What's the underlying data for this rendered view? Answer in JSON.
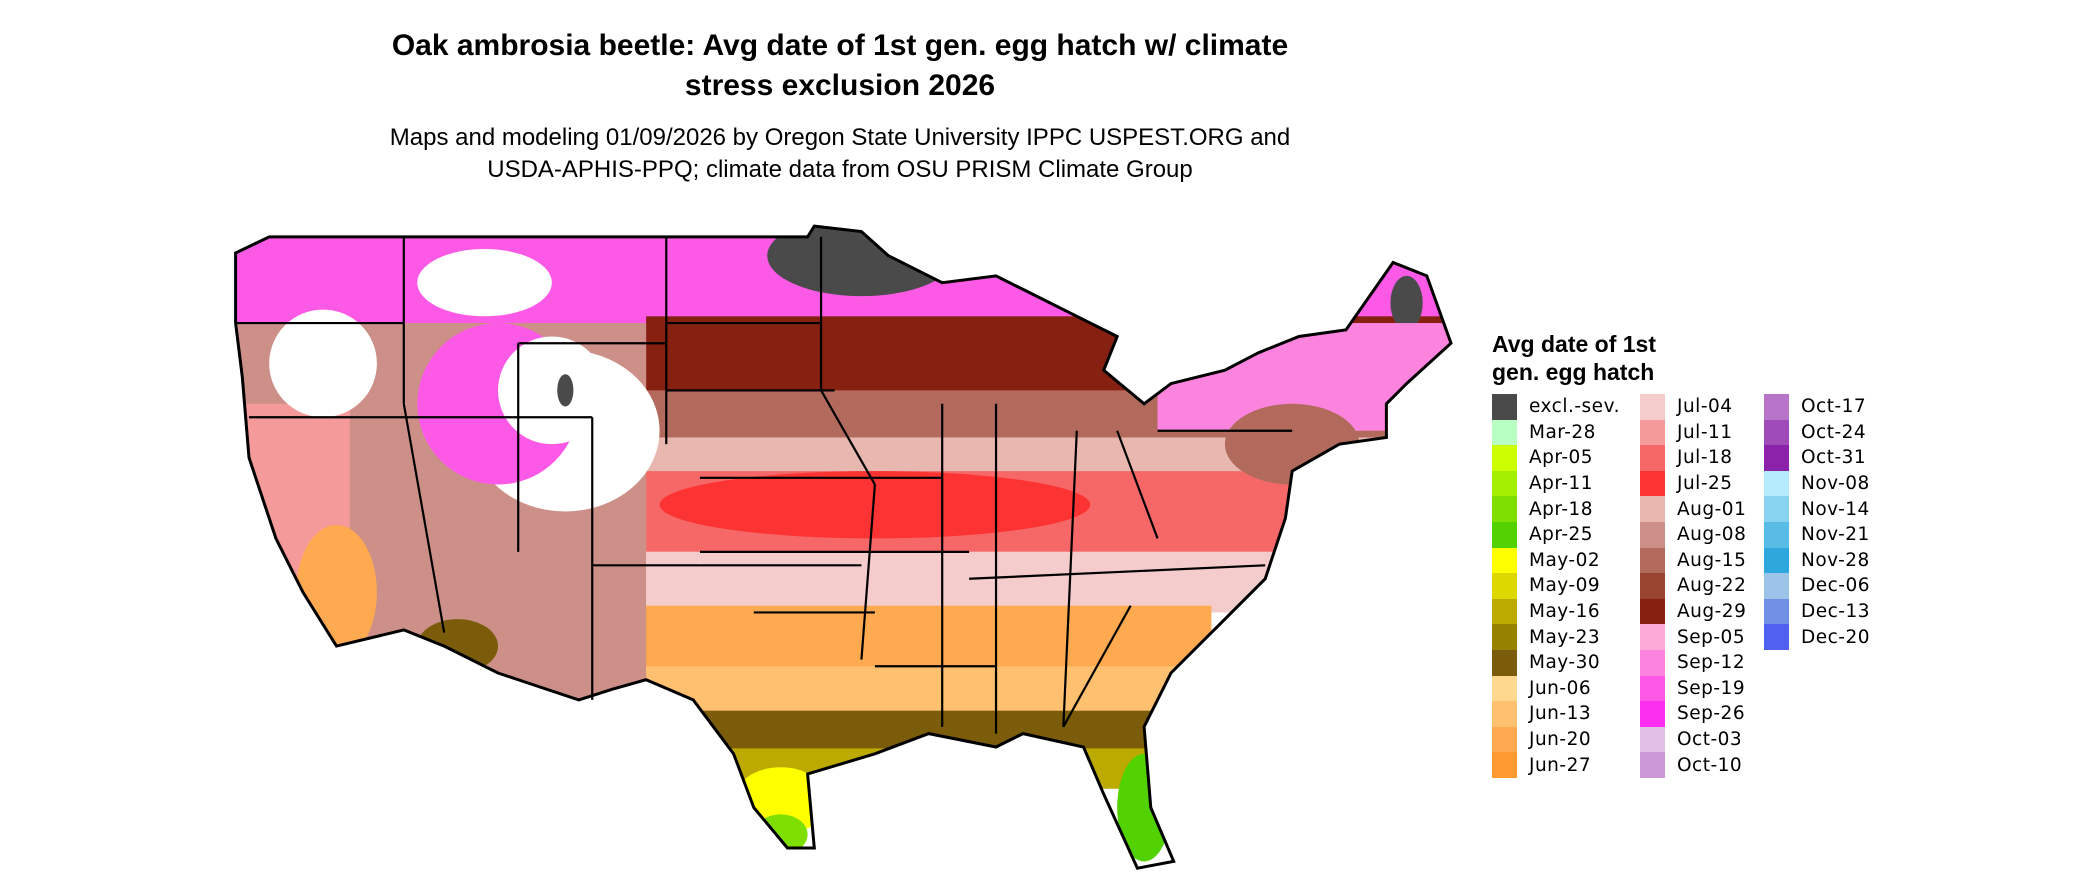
{
  "title": {
    "line1": "Oak ambrosia beetle: Avg date of 1st gen. egg hatch w/ climate",
    "line2": "stress exclusion 2026"
  },
  "subtitle": {
    "line1": "Maps and modeling 01/09/2026 by Oregon State University IPPC USPEST.ORG and",
    "line2": "USDA-APHIS-PPQ; climate data from OSU PRISM Climate Group"
  },
  "legend": {
    "title_line1": "Avg date of 1st",
    "title_line2": "gen. egg hatch",
    "columns": [
      [
        {
          "label": "excl.-sev.",
          "color": "#4a4a4a"
        },
        {
          "label": "Mar-28",
          "color": "#b8ffc4"
        },
        {
          "label": "Apr-05",
          "color": "#ccff00"
        },
        {
          "label": "Apr-11",
          "color": "#a4ee00"
        },
        {
          "label": "Apr-18",
          "color": "#7ede00"
        },
        {
          "label": "Apr-25",
          "color": "#52d200"
        },
        {
          "label": "May-02",
          "color": "#ffff00"
        },
        {
          "label": "May-09",
          "color": "#dcd800"
        },
        {
          "label": "May-16",
          "color": "#bcaa00"
        },
        {
          "label": "May-23",
          "color": "#978200"
        },
        {
          "label": "May-30",
          "color": "#7a5c0a"
        },
        {
          "label": "Jun-06",
          "color": "#ffd890"
        },
        {
          "label": "Jun-13",
          "color": "#ffc070"
        },
        {
          "label": "Jun-20",
          "color": "#ffaa50"
        },
        {
          "label": "Jun-27",
          "color": "#ff9a33"
        }
      ],
      [
        {
          "label": "Jul-04",
          "color": "#f4cccc"
        },
        {
          "label": "Jul-11",
          "color": "#f49a9a"
        },
        {
          "label": "Jul-18",
          "color": "#f66868"
        },
        {
          "label": "Jul-25",
          "color": "#fc3333"
        },
        {
          "label": "Aug-01",
          "color": "#e8b8b0"
        },
        {
          "label": "Aug-08",
          "color": "#cc9088"
        },
        {
          "label": "Aug-15",
          "color": "#b26a5c"
        },
        {
          "label": "Aug-22",
          "color": "#9a4432"
        },
        {
          "label": "Aug-29",
          "color": "#862010"
        },
        {
          "label": "Sep-05",
          "color": "#fcaad8"
        },
        {
          "label": "Sep-12",
          "color": "#fc84de"
        },
        {
          "label": "Sep-19",
          "color": "#fc5ae6"
        },
        {
          "label": "Sep-26",
          "color": "#fc2ef0"
        },
        {
          "label": "Oct-03",
          "color": "#e0c0e6"
        },
        {
          "label": "Oct-10",
          "color": "#cc98d6"
        }
      ],
      [
        {
          "label": "Oct-17",
          "color": "#b874c8"
        },
        {
          "label": "Oct-24",
          "color": "#a04cb8"
        },
        {
          "label": "Oct-31",
          "color": "#8c22aa"
        },
        {
          "label": "Nov-08",
          "color": "#b4ecfe"
        },
        {
          "label": "Nov-14",
          "color": "#88d4f0"
        },
        {
          "label": "Nov-21",
          "color": "#58bce6"
        },
        {
          "label": "Nov-28",
          "color": "#2ea8dc"
        },
        {
          "label": "Dec-06",
          "color": "#9cc4e8"
        },
        {
          "label": "Dec-13",
          "color": "#7090e6"
        },
        {
          "label": "Dec-20",
          "color": "#5060f0"
        }
      ]
    ]
  }
}
